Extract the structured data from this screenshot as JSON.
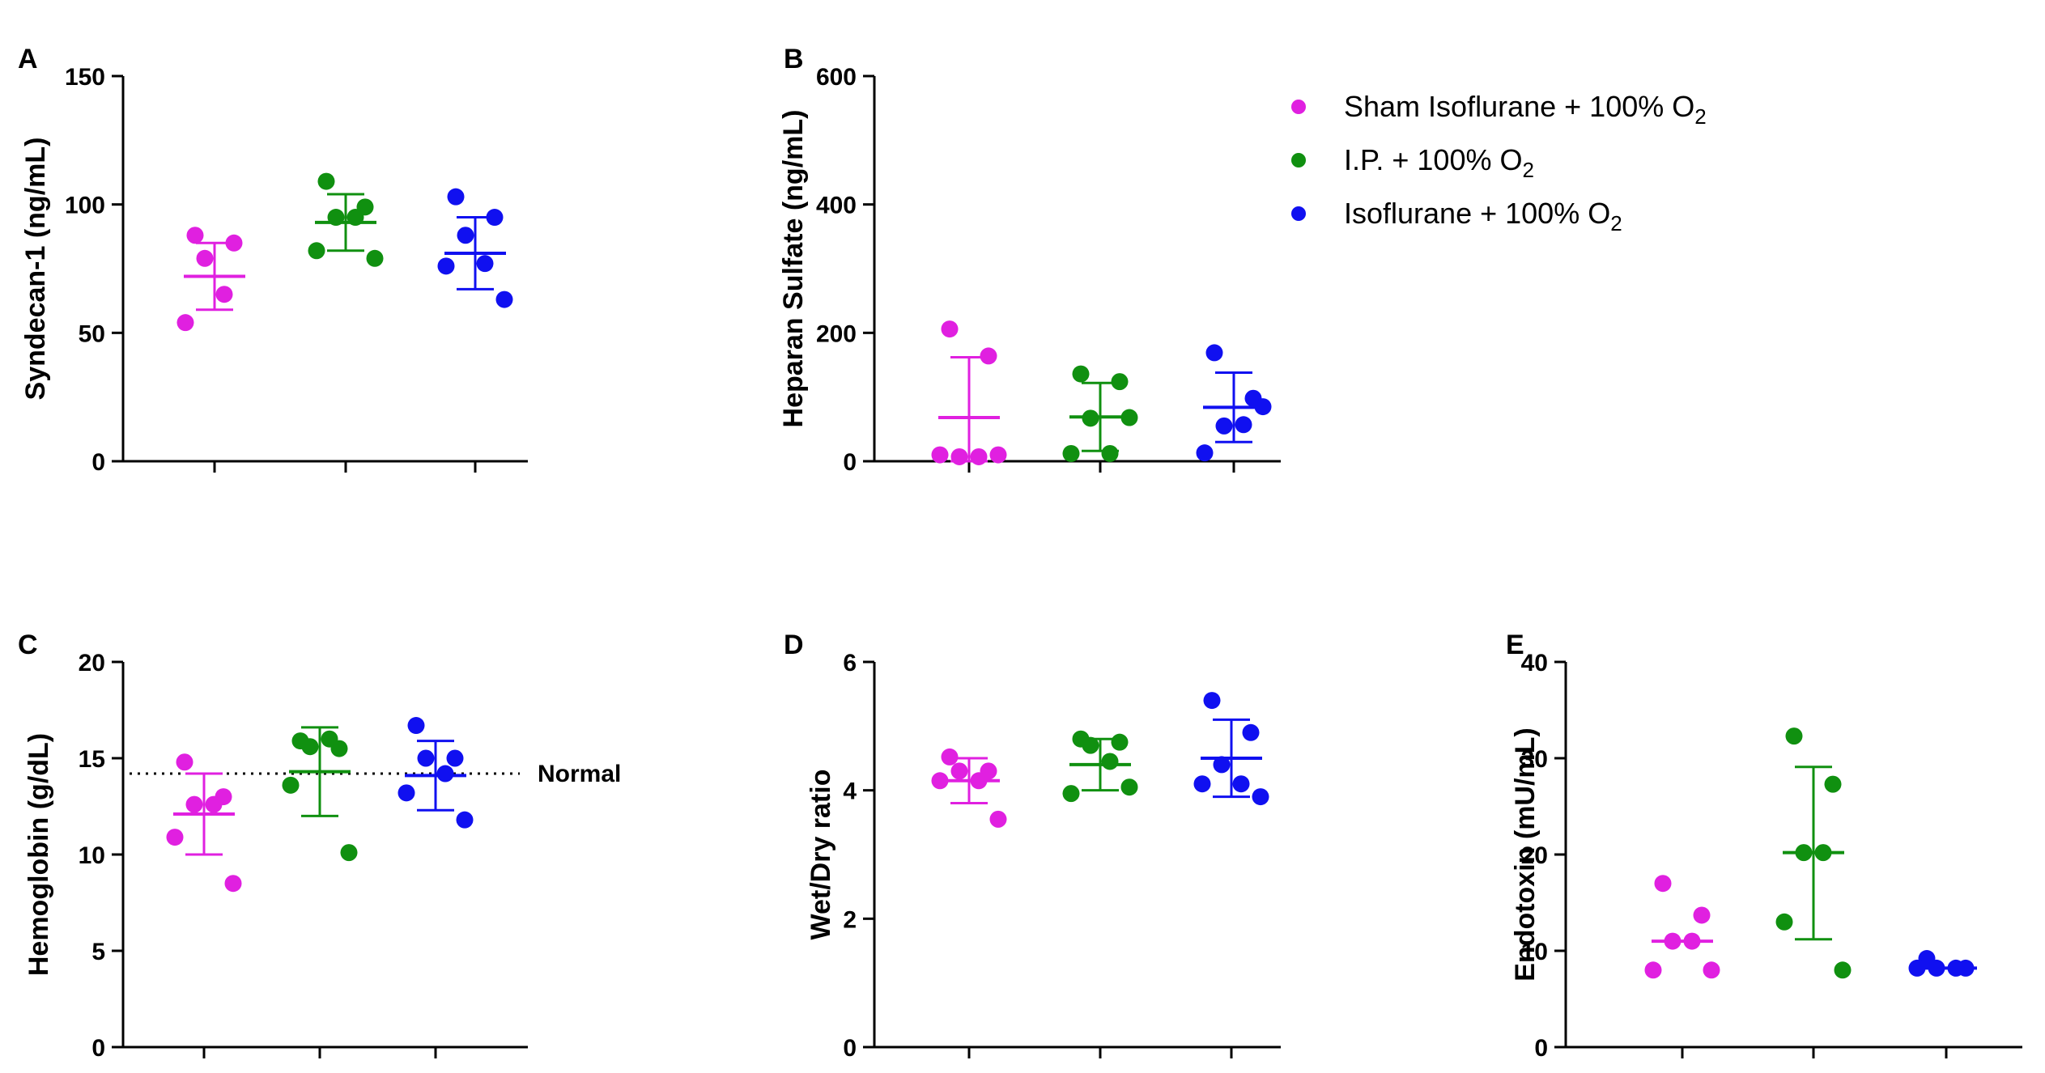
{
  "colors": {
    "sham": "#e020e0",
    "ip": "#109010",
    "iso": "#1010f0",
    "axis": "#000000"
  },
  "legend": [
    {
      "group": "sham",
      "label": "Sham Isoflurane + 100% O",
      "sub": "2"
    },
    {
      "group": "ip",
      "label": "I.P. + 100% O",
      "sub": "2"
    },
    {
      "group": "iso",
      "label": "Isoflurane + 100% O",
      "sub": "2"
    }
  ],
  "chart_data": [
    {
      "panel": "A",
      "type": "scatter",
      "ylabel": "Syndecan-1 (ng/mL)",
      "ylim": [
        0,
        150
      ],
      "yticks": [
        0,
        50,
        100,
        150
      ],
      "series": [
        {
          "group": "sham",
          "mean": 72,
          "error": [
            59,
            85
          ],
          "points": [
            88,
            85,
            79,
            65,
            54
          ]
        },
        {
          "group": "ip",
          "mean": 93,
          "error": [
            82,
            104
          ],
          "points": [
            109,
            99,
            95,
            95,
            82,
            79
          ]
        },
        {
          "group": "iso",
          "mean": 81,
          "error": [
            67,
            95
          ],
          "points": [
            103,
            95,
            88,
            77,
            76,
            63
          ]
        }
      ]
    },
    {
      "panel": "B",
      "type": "scatter",
      "ylabel": "Heparan Sulfate (ng/mL)",
      "ylim": [
        0,
        600
      ],
      "yticks": [
        0,
        200,
        400,
        600
      ],
      "series": [
        {
          "group": "sham",
          "mean": 68,
          "error": [
            0,
            162
          ],
          "points": [
            206,
            164,
            7,
            7,
            10,
            10
          ]
        },
        {
          "group": "ip",
          "mean": 69,
          "error": [
            16,
            122
          ],
          "points": [
            136,
            124,
            67,
            12,
            12,
            68
          ]
        },
        {
          "group": "iso",
          "mean": 84,
          "error": [
            30,
            138
          ],
          "points": [
            169,
            98,
            55,
            57,
            13,
            85
          ]
        }
      ]
    },
    {
      "panel": "C",
      "type": "scatter",
      "ylabel": "Hemoglobin (g/dL)",
      "ylim": [
        0,
        20
      ],
      "yticks": [
        0,
        5,
        10,
        15,
        20
      ],
      "reference_line": {
        "y": 14.2,
        "label": "Normal"
      },
      "series": [
        {
          "group": "sham",
          "mean": 12.1,
          "error": [
            10.0,
            14.2
          ],
          "points": [
            14.8,
            13.0,
            12.6,
            12.6,
            10.9,
            8.5
          ]
        },
        {
          "group": "ip",
          "mean": 14.3,
          "error": [
            12.0,
            16.6
          ],
          "points": [
            15.9,
            15.5,
            15.6,
            16.0,
            13.6,
            10.1
          ]
        },
        {
          "group": "iso",
          "mean": 14.1,
          "error": [
            12.3,
            15.9
          ],
          "points": [
            16.7,
            15.0,
            15.0,
            14.2,
            13.2,
            11.8
          ]
        }
      ]
    },
    {
      "panel": "D",
      "type": "scatter",
      "ylabel": "Wet/Dry ratio",
      "ylim": [
        0,
        6
      ],
      "yticks": [
        0,
        2,
        4,
        6
      ],
      "series": [
        {
          "group": "sham",
          "mean": 4.15,
          "error": [
            3.8,
            4.5
          ],
          "points": [
            4.52,
            4.3,
            4.3,
            4.15,
            4.15,
            3.55
          ]
        },
        {
          "group": "ip",
          "mean": 4.4,
          "error": [
            4.0,
            4.8
          ],
          "points": [
            4.8,
            4.75,
            4.7,
            4.45,
            3.95,
            4.05
          ]
        },
        {
          "group": "iso",
          "mean": 4.5,
          "error": [
            3.9,
            5.1
          ],
          "points": [
            5.4,
            4.9,
            4.4,
            4.1,
            4.1,
            3.9
          ]
        }
      ]
    },
    {
      "panel": "E",
      "type": "scatter",
      "ylabel": "Endotoxin (mU/mL)",
      "ylim": [
        0,
        40
      ],
      "yticks": [
        0,
        10,
        20,
        30,
        40
      ],
      "series": [
        {
          "group": "sham",
          "mean": 11.0,
          "error": null,
          "points": [
            17.0,
            13.7,
            11.0,
            11.0,
            8.0,
            8.0
          ]
        },
        {
          "group": "ip",
          "mean": 20.2,
          "error": [
            11.2,
            29.1
          ],
          "points": [
            32.3,
            27.3,
            20.2,
            20.2,
            13.0,
            8.0
          ]
        },
        {
          "group": "iso",
          "mean": 8.2,
          "error": null,
          "points": [
            9.2,
            8.2,
            8.2,
            8.2,
            8.2
          ]
        }
      ]
    }
  ]
}
